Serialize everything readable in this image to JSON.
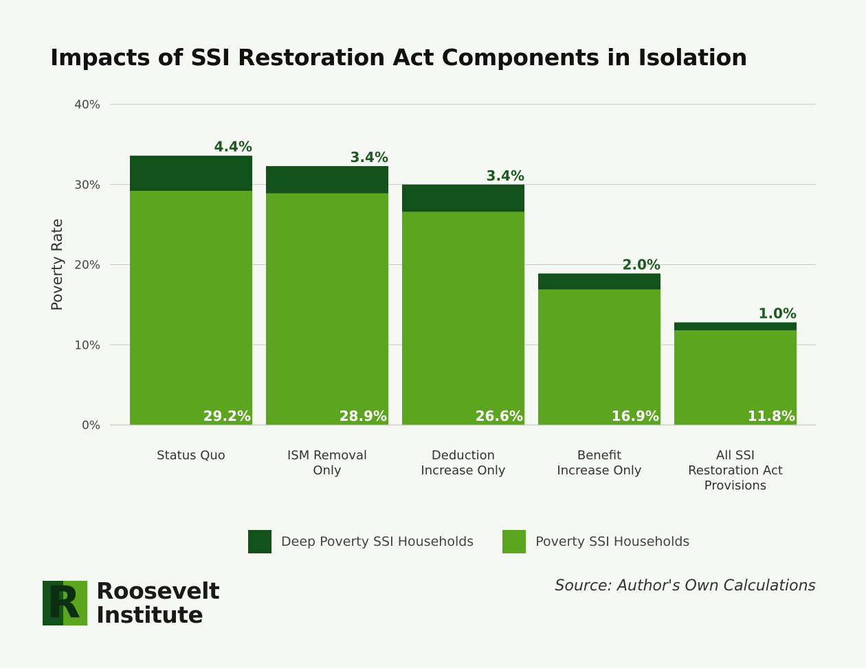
{
  "page": {
    "source": "Source: Author's Own Calculations",
    "logo": {
      "line1": "Roosevelt",
      "line2": "Institute",
      "mark_letter": "R"
    }
  },
  "colors": {
    "deep": "#12521a",
    "poverty": "#5ba61e",
    "label_dark": "#1d5a1f",
    "grid": "#c8ccc6",
    "background": "#f6f9f3"
  },
  "chart_data": {
    "type": "bar",
    "stacked": true,
    "title": "Impacts of SSI Restoration Act Components in Isolation",
    "ylabel": "Poverty Rate",
    "xlabel": "",
    "ylim": [
      0,
      40
    ],
    "yticks": [
      0,
      10,
      20,
      30,
      40
    ],
    "ytick_labels": [
      "0%",
      "10%",
      "20%",
      "30%",
      "40%"
    ],
    "grid": true,
    "legend_position": "bottom",
    "categories": [
      [
        "Status Quo"
      ],
      [
        "ISM Removal",
        "Only"
      ],
      [
        "Deduction",
        "Increase Only"
      ],
      [
        "Benefit",
        "Increase Only"
      ],
      [
        "All SSI",
        "Restoration Act",
        "Provisions"
      ]
    ],
    "series": [
      {
        "name": "Poverty SSI Households",
        "values": [
          29.2,
          28.9,
          26.6,
          16.9,
          11.8
        ],
        "labels": [
          "29.2%",
          "28.9%",
          "26.6%",
          "16.9%",
          "11.8%"
        ]
      },
      {
        "name": "Deep Poverty SSI Households",
        "values": [
          4.4,
          3.4,
          3.4,
          2.0,
          1.0
        ],
        "labels": [
          "4.4%",
          "3.4%",
          "3.4%",
          "2.0%",
          "1.0%"
        ]
      }
    ]
  }
}
